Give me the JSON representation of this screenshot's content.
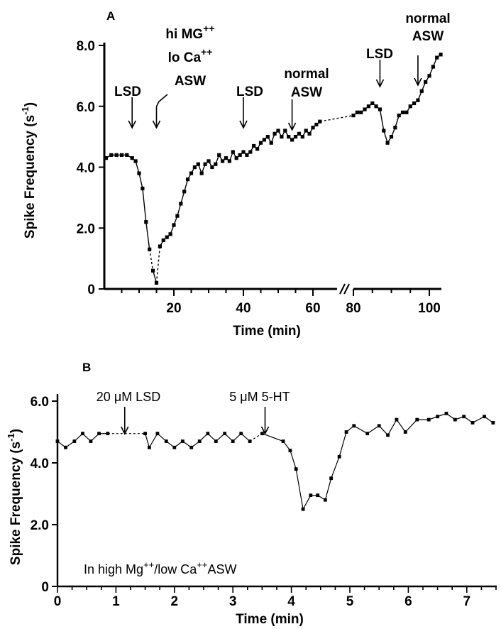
{
  "chart_data": [
    {
      "panel": "A",
      "type": "line",
      "xlabel": "Time (min)",
      "ylabel_main": "Spike Frequency (s",
      "ylabel_sup": "-1",
      "ylabel_tail": ")",
      "ylim": [
        0,
        8
      ],
      "x_break": [
        63,
        80
      ],
      "x_ticks": [
        20,
        40,
        60,
        80,
        100
      ],
      "y_ticks": [
        {
          "v": 0,
          "t": "0"
        },
        {
          "v": 2,
          "t": "2.0"
        },
        {
          "v": 4,
          "t": "4.0"
        },
        {
          "v": 6,
          "t": "6.0"
        },
        {
          "v": 8,
          "t": "8.0"
        }
      ],
      "grid": false,
      "series": [
        {
          "x": [
            0.5,
            2,
            3.5,
            5,
            6.5,
            8,
            9,
            10,
            11,
            12,
            13,
            14,
            15,
            16,
            17,
            18,
            19,
            20,
            21,
            22,
            23,
            24,
            25,
            26,
            27,
            28,
            29,
            30,
            31,
            32,
            33,
            34,
            35,
            36,
            37,
            38,
            39,
            40,
            41,
            42,
            43,
            44,
            45,
            46,
            47,
            48,
            49,
            50,
            51,
            52,
            53,
            54,
            55,
            56,
            57,
            58,
            59,
            60,
            61,
            62,
            80,
            81,
            82,
            83,
            84,
            85,
            86,
            87,
            88,
            89,
            90,
            91,
            92,
            93,
            94,
            95,
            96,
            97,
            98,
            99,
            100,
            101,
            102,
            103
          ],
          "y": [
            4.3,
            4.4,
            4.4,
            4.4,
            4.4,
            4.3,
            4.2,
            3.8,
            3.3,
            2.2,
            1.3,
            0.6,
            0.2,
            1.4,
            1.6,
            1.7,
            1.8,
            2.1,
            2.4,
            2.8,
            3.2,
            3.6,
            3.8,
            4.0,
            4.1,
            3.8,
            4.1,
            4.2,
            4.0,
            4.1,
            4.4,
            4.2,
            4.3,
            4.2,
            4.5,
            4.3,
            4.4,
            4.5,
            4.4,
            4.5,
            4.7,
            4.6,
            4.8,
            4.9,
            5.0,
            4.8,
            5.1,
            5.2,
            5.0,
            5.2,
            5.0,
            4.9,
            5.0,
            5.1,
            5.0,
            5.2,
            5.1,
            5.3,
            5.4,
            5.5,
            5.7,
            5.8,
            5.8,
            5.9,
            6.0,
            6.1,
            6.0,
            5.9,
            5.2,
            4.8,
            5.0,
            5.3,
            5.7,
            5.8,
            5.8,
            6.0,
            6.1,
            6.2,
            6.5,
            6.8,
            7.0,
            7.3,
            7.6,
            7.7
          ],
          "dashed_segments": [
            [
              13,
              14
            ],
            [
              15,
              16
            ],
            [
              62,
              80
            ],
            [
              97,
              99
            ]
          ]
        }
      ],
      "annotations": [
        {
          "lines": [
            "LSD"
          ],
          "arrow_x": 8
        },
        {
          "lines": [
            "hi MG",
            "lo Ca",
            "ASW"
          ],
          "sups": [
            "++",
            "++",
            ""
          ],
          "arrow_x": 15
        },
        {
          "lines": [
            "LSD"
          ],
          "arrow_x": 40
        },
        {
          "lines": [
            "normal",
            "ASW"
          ],
          "arrow_x": 54
        },
        {
          "lines": [
            "LSD"
          ],
          "arrow_x": 87
        },
        {
          "lines": [
            "normal",
            "ASW"
          ],
          "arrow_x": 97
        }
      ]
    },
    {
      "panel": "B",
      "type": "line",
      "xlabel": "Time (min)",
      "ylabel_main": "Spike Frequency (s",
      "ylabel_sup": "-1",
      "ylabel_tail": ")",
      "xlim": [
        0,
        7.5
      ],
      "ylim": [
        0,
        6
      ],
      "x_ticks": [
        0,
        1,
        2,
        3,
        4,
        5,
        6,
        7
      ],
      "y_ticks": [
        {
          "v": 0,
          "t": "0"
        },
        {
          "v": 2,
          "t": "2.0"
        },
        {
          "v": 4,
          "t": "4.0"
        },
        {
          "v": 6,
          "t": "6.0"
        }
      ],
      "grid": false,
      "series": [
        {
          "x": [
            0,
            0.14,
            0.29,
            0.43,
            0.57,
            0.71,
            0.86,
            1.5,
            1.57,
            1.71,
            1.86,
            2.0,
            2.14,
            2.29,
            2.43,
            2.57,
            2.71,
            2.86,
            3.0,
            3.14,
            3.29,
            3.5,
            3.86,
            3.98,
            4.08,
            4.2,
            4.33,
            4.45,
            4.58,
            4.68,
            4.82,
            4.94,
            5.07,
            5.3,
            5.5,
            5.65,
            5.8,
            5.95,
            6.15,
            6.35,
            6.5,
            6.65,
            6.8,
            6.95,
            7.1,
            7.3,
            7.45
          ],
          "y": [
            4.7,
            4.5,
            4.7,
            4.95,
            4.7,
            4.95,
            4.95,
            4.95,
            4.5,
            4.95,
            4.7,
            4.5,
            4.7,
            4.5,
            4.7,
            4.95,
            4.7,
            4.95,
            4.7,
            4.95,
            4.7,
            4.95,
            4.7,
            4.4,
            3.8,
            2.5,
            2.95,
            2.95,
            2.8,
            3.5,
            4.2,
            5.0,
            5.2,
            4.95,
            5.2,
            4.9,
            5.4,
            5.0,
            5.4,
            5.4,
            5.5,
            5.6,
            5.4,
            5.5,
            5.3,
            5.5,
            5.3
          ],
          "dashed_segments": [
            [
              0.86,
              1.5
            ],
            [
              3.29,
              3.5
            ]
          ]
        }
      ],
      "annotations": [
        {
          "text": "20 μM LSD",
          "arrow_x": 1.15
        },
        {
          "text": "5 μM 5-HT",
          "arrow_x": 3.55
        }
      ],
      "inset_note": {
        "pre": "In high Mg",
        "sup1": "++",
        "mid": "/low Ca",
        "sup2": "++",
        "post": "ASW"
      }
    }
  ]
}
